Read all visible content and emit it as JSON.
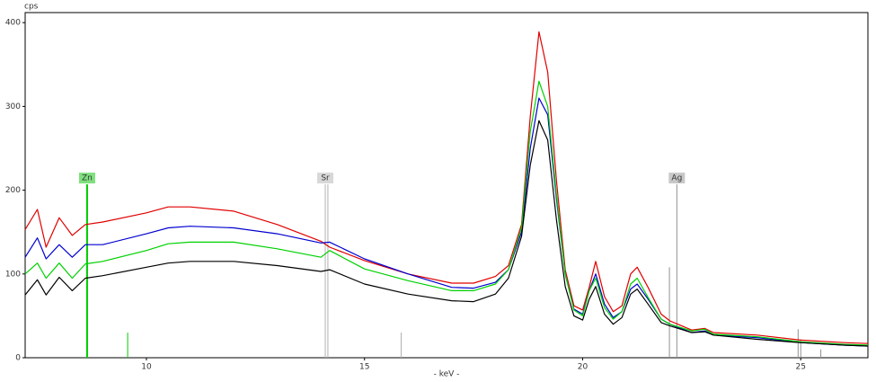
{
  "chart_data": {
    "type": "line",
    "y_label": "cps",
    "x_label": "- keV -",
    "x": [
      7.22,
      7.5,
      7.7,
      8.0,
      8.3,
      8.6,
      9,
      10,
      10.5,
      11,
      12,
      13,
      14,
      14.2,
      15,
      16,
      17,
      17.5,
      18,
      18.3,
      18.6,
      18.8,
      19.0,
      19.2,
      19.4,
      19.6,
      19.8,
      20,
      20.15,
      20.3,
      20.5,
      20.7,
      20.9,
      21.1,
      21.25,
      21.5,
      21.8,
      22,
      22.5,
      22.8,
      23,
      24,
      25,
      26,
      26.54
    ],
    "series": [
      {
        "color": "#e00000",
        "values": [
          153,
          177,
          132,
          167,
          146,
          159,
          162,
          173,
          180,
          180,
          175,
          159,
          139,
          132,
          116,
          100,
          89,
          89,
          97,
          110,
          159,
          288,
          389,
          341,
          212,
          105,
          62,
          57,
          84,
          115,
          73,
          55,
          62,
          100,
          108,
          84,
          52,
          44,
          33,
          35,
          30,
          27,
          21,
          18,
          17
        ]
      },
      {
        "color": "#0000d0",
        "values": [
          120,
          143,
          118,
          135,
          120,
          135,
          135,
          148,
          155,
          157,
          155,
          148,
          137,
          138,
          118,
          100,
          84,
          83,
          90,
          105,
          150,
          250,
          310,
          290,
          190,
          100,
          58,
          52,
          80,
          100,
          64,
          48,
          55,
          82,
          88,
          70,
          46,
          40,
          30,
          32,
          27,
          24,
          18,
          15,
          14
        ]
      },
      {
        "color": "#00d000",
        "values": [
          100,
          113,
          95,
          113,
          95,
          112,
          115,
          128,
          136,
          138,
          138,
          130,
          120,
          128,
          106,
          92,
          80,
          80,
          88,
          105,
          155,
          270,
          330,
          300,
          195,
          100,
          57,
          50,
          80,
          95,
          60,
          46,
          55,
          88,
          95,
          72,
          46,
          40,
          32,
          34,
          28,
          25,
          19,
          16,
          15
        ]
      },
      {
        "color": "#000000",
        "values": [
          75,
          93,
          75,
          96,
          80,
          95,
          98,
          108,
          113,
          115,
          115,
          110,
          103,
          105,
          88,
          76,
          68,
          67,
          76,
          95,
          145,
          230,
          283,
          260,
          165,
          85,
          50,
          45,
          70,
          85,
          52,
          40,
          48,
          76,
          82,
          64,
          42,
          38,
          30,
          31,
          27,
          22,
          18,
          15,
          14
        ]
      }
    ],
    "markers": [
      {
        "label": "Zn",
        "color": "#00cc00",
        "label_bg": "#7ee07e",
        "lines": [
          {
            "x": 8.64,
            "value": 207
          },
          {
            "x": 9.57,
            "value": 30
          }
        ]
      },
      {
        "label": "Sr",
        "color": "#b0b0b0",
        "label_bg": "#d8d8d8",
        "lines": [
          {
            "x": 14.1,
            "value": 207
          },
          {
            "x": 14.16,
            "value": 207
          },
          {
            "x": 15.84,
            "value": 30
          }
        ]
      },
      {
        "label": "Ag",
        "color": "#909090",
        "label_bg": "#c8c8c8",
        "lines": [
          {
            "x": 21.99,
            "value": 108
          },
          {
            "x": 22.16,
            "value": 207
          },
          {
            "x": 24.94,
            "value": 34
          },
          {
            "x": 25.0,
            "value": 22
          },
          {
            "x": 25.46,
            "value": 10
          }
        ]
      }
    ],
    "xlim": [
      7.22,
      26.54
    ],
    "ylim": [
      0,
      412
    ],
    "xticks": [
      10,
      15,
      20,
      25
    ],
    "yticks": [
      0,
      100,
      200,
      300,
      400
    ]
  }
}
